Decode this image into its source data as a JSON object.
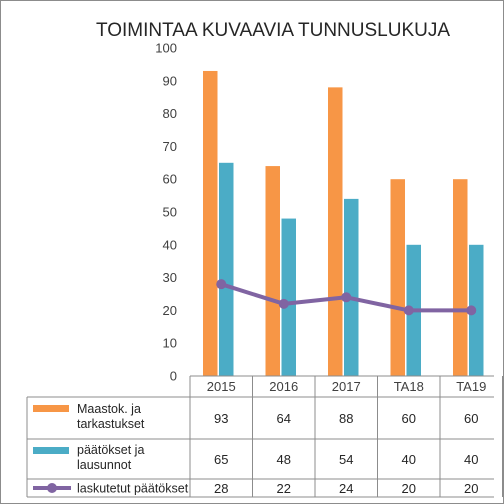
{
  "chart_data": {
    "type": "bar",
    "title": "TOIMINTAA KUVAAVIA TUNNUSLUKUJA",
    "categories": [
      "2015",
      "2016",
      "2017",
      "TA18",
      "TA19"
    ],
    "ylim": [
      0,
      100
    ],
    "yticks": [
      "0",
      "10",
      "20",
      "30",
      "40",
      "50",
      "60",
      "70",
      "80",
      "90",
      "100"
    ],
    "grid": false,
    "legend_placement": "data table below chart",
    "series": [
      {
        "name": "Maastok. ja tarkastukset",
        "name_lines": [
          "Maastok. ja",
          "tarkastukset"
        ],
        "kind": "bar",
        "color": "#f79646",
        "values": [
          93,
          64,
          88,
          60,
          60
        ]
      },
      {
        "name": "päätökset ja lausunnot",
        "name_lines": [
          "päätökset ja",
          "lausunnot"
        ],
        "kind": "bar",
        "color": "#4bacc6",
        "values": [
          65,
          48,
          54,
          40,
          40
        ]
      },
      {
        "name": "laskutetut päätökset",
        "name_lines": [
          "laskutetut päätökset"
        ],
        "kind": "line",
        "color": "#8064a2",
        "values": [
          28,
          22,
          24,
          20,
          20
        ]
      }
    ]
  }
}
